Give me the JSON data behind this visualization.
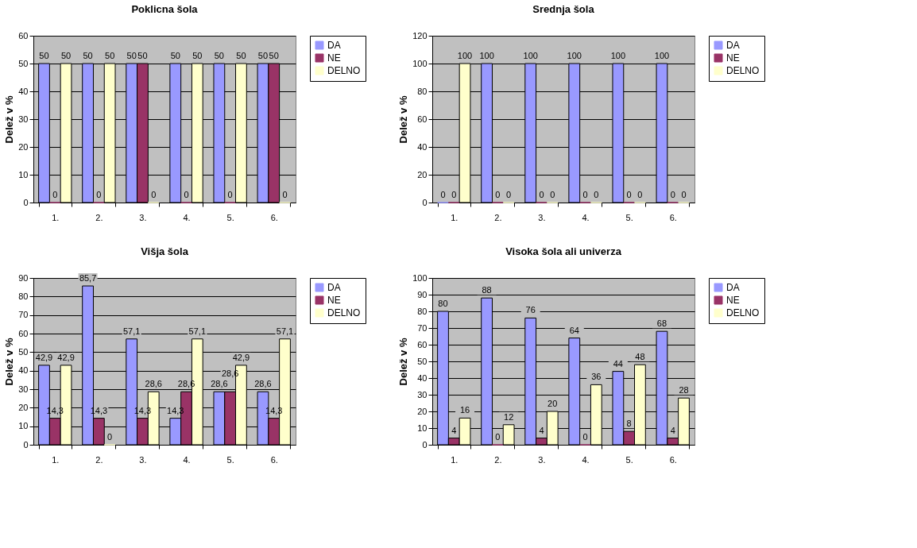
{
  "chart_data": [
    {
      "type": "bar",
      "title": "Poklicna šola",
      "ylabel": "Delež v %",
      "categories": [
        "1.",
        "2.",
        "3.",
        "4.",
        "5.",
        "6."
      ],
      "ylim": [
        0,
        60
      ],
      "yticks": [
        0,
        10,
        20,
        30,
        40,
        50,
        60
      ],
      "grid": "y",
      "legend": "right",
      "data_labels": true,
      "series": [
        {
          "name": "DA",
          "color": "#9999ff",
          "values": [
            50,
            50,
            50,
            50,
            50,
            50
          ]
        },
        {
          "name": "NE",
          "color": "#993366",
          "values": [
            0,
            0,
            50,
            0,
            0,
            50
          ]
        },
        {
          "name": "DELNO",
          "color": "#ffffcc",
          "values": [
            50,
            50,
            0,
            50,
            50,
            0
          ]
        }
      ]
    },
    {
      "type": "bar",
      "title": "Srednja šola",
      "ylabel": "Delež v %",
      "categories": [
        "1.",
        "2.",
        "3.",
        "4.",
        "5.",
        "6."
      ],
      "ylim": [
        0,
        120
      ],
      "yticks": [
        0,
        20,
        40,
        60,
        80,
        100,
        120
      ],
      "grid": "y",
      "legend": "right",
      "data_labels": true,
      "series": [
        {
          "name": "DA",
          "color": "#9999ff",
          "values": [
            0,
            100,
            100,
            100,
            100,
            100
          ]
        },
        {
          "name": "NE",
          "color": "#993366",
          "values": [
            0,
            0,
            0,
            0,
            0,
            0
          ]
        },
        {
          "name": "DELNO",
          "color": "#ffffcc",
          "values": [
            100,
            0,
            0,
            0,
            0,
            0
          ]
        }
      ]
    },
    {
      "type": "bar",
      "title": "Višja šola",
      "ylabel": "Delež v %",
      "categories": [
        "1.",
        "2.",
        "3.",
        "4.",
        "5.",
        "6."
      ],
      "ylim": [
        0,
        90
      ],
      "yticks": [
        0,
        10,
        20,
        30,
        40,
        50,
        60,
        70,
        80,
        90
      ],
      "grid": "y",
      "legend": "right",
      "series": [
        {
          "name": "DA",
          "color": "#9999ff",
          "values": [
            42.9,
            85.7,
            57.1,
            14.3,
            28.6,
            28.6
          ],
          "value_labels": [
            "42,9",
            "85,7",
            "57,1",
            "14,3",
            "28,6",
            "28,6"
          ]
        },
        {
          "name": "NE",
          "color": "#993366",
          "values": [
            14.3,
            14.3,
            14.3,
            28.6,
            28.6,
            14.3
          ],
          "value_labels": [
            "14,3",
            "14,3",
            "14,3",
            "28,6",
            "28,6",
            "14,3"
          ]
        },
        {
          "name": "DELNO",
          "color": "#ffffcc",
          "values": [
            42.9,
            0,
            28.6,
            57.1,
            42.9,
            57.1
          ],
          "value_labels": [
            "42,9",
            "0",
            "28,6",
            "57,1",
            "42,9",
            "57,1"
          ]
        }
      ]
    },
    {
      "type": "bar",
      "title": "Visoka šola ali univerza",
      "ylabel": "Delež v %",
      "categories": [
        "1.",
        "2.",
        "3.",
        "4.",
        "5.",
        "6."
      ],
      "ylim": [
        0,
        100
      ],
      "yticks": [
        0,
        10,
        20,
        30,
        40,
        50,
        60,
        70,
        80,
        90,
        100
      ],
      "grid": "y",
      "legend": "right",
      "data_labels": true,
      "series": [
        {
          "name": "DA",
          "color": "#9999ff",
          "values": [
            80,
            88,
            76,
            64,
            44,
            68
          ]
        },
        {
          "name": "NE",
          "color": "#993366",
          "values": [
            4,
            0,
            4,
            0,
            8,
            4
          ]
        },
        {
          "name": "DELNO",
          "color": "#ffffcc",
          "values": [
            16,
            12,
            20,
            36,
            48,
            28
          ]
        }
      ]
    }
  ]
}
